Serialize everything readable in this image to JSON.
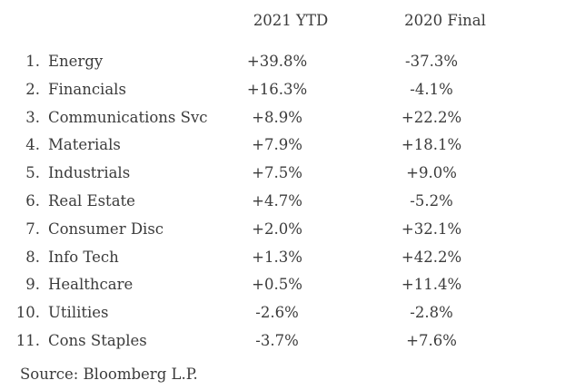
{
  "colors": {
    "background": "#ffffff",
    "text": "#3b3b3b"
  },
  "table": {
    "columns": {
      "ytd": "2021 YTD",
      "final": "2020 Final"
    },
    "rows": [
      {
        "rank": "1.",
        "sector": "Energy",
        "ytd_2021": "+39.8%",
        "final_2020": "-37.3%"
      },
      {
        "rank": "2.",
        "sector": "Financials",
        "ytd_2021": "+16.3%",
        "final_2020": "-4.1%"
      },
      {
        "rank": "3.",
        "sector": "Communications Svc",
        "ytd_2021": "+8.9%",
        "final_2020": "+22.2%"
      },
      {
        "rank": "4.",
        "sector": "Materials",
        "ytd_2021": "+7.9%",
        "final_2020": "+18.1%"
      },
      {
        "rank": "5.",
        "sector": "Industrials",
        "ytd_2021": "+7.5%",
        "final_2020": "+9.0%"
      },
      {
        "rank": "6.",
        "sector": "Real Estate",
        "ytd_2021": "+4.7%",
        "final_2020": "-5.2%"
      },
      {
        "rank": "7.",
        "sector": "Consumer Disc",
        "ytd_2021": "+2.0%",
        "final_2020": "+32.1%"
      },
      {
        "rank": "8.",
        "sector": "Info Tech",
        "ytd_2021": "+1.3%",
        "final_2020": "+42.2%"
      },
      {
        "rank": "9.",
        "sector": "Healthcare",
        "ytd_2021": "+0.5%",
        "final_2020": "+11.4%"
      },
      {
        "rank": "10.",
        "sector": "Utilities",
        "ytd_2021": "-2.6%",
        "final_2020": "-2.8%"
      },
      {
        "rank": "11.",
        "sector": "Cons Staples",
        "ytd_2021": "-3.7%",
        "final_2020": "+7.6%"
      }
    ],
    "source": "Source: Bloomberg L.P."
  },
  "chart_data": {
    "type": "table",
    "title": "",
    "categories": [
      "Energy",
      "Financials",
      "Communications Svc",
      "Materials",
      "Industrials",
      "Real Estate",
      "Consumer Disc",
      "Info Tech",
      "Healthcare",
      "Utilities",
      "Cons Staples"
    ],
    "series": [
      {
        "name": "2021 YTD",
        "values": [
          39.8,
          16.3,
          8.9,
          7.9,
          7.5,
          4.7,
          2.0,
          1.3,
          0.5,
          -2.6,
          -3.7
        ]
      },
      {
        "name": "2020 Final",
        "values": [
          -37.3,
          -4.1,
          22.2,
          18.1,
          9.0,
          -5.2,
          32.1,
          42.2,
          11.4,
          -2.8,
          7.6
        ]
      }
    ],
    "value_unit": "%",
    "annotations": [
      "Source: Bloomberg L.P."
    ],
    "layout": {
      "grid": false,
      "legend_position": "none",
      "header_row": true
    }
  }
}
